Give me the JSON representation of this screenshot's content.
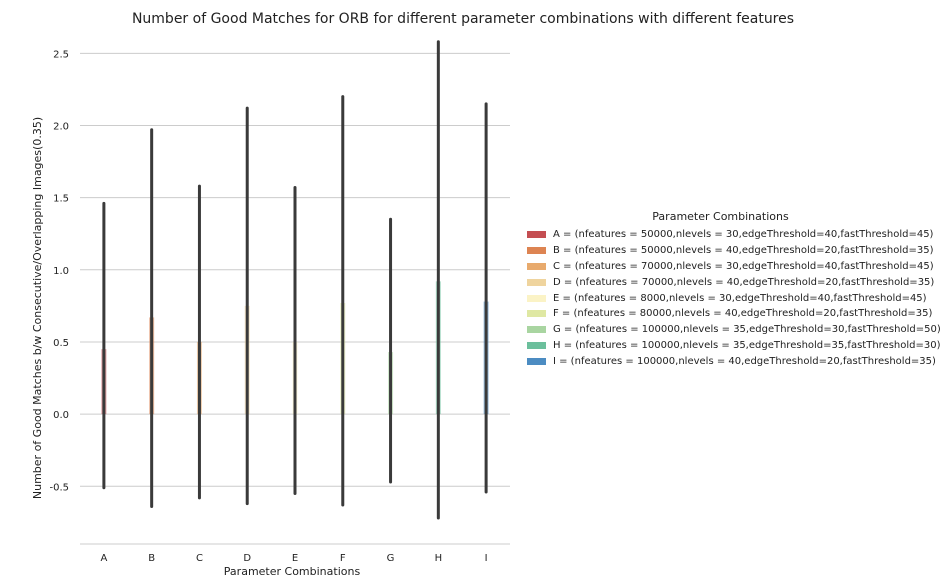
{
  "chart_data": {
    "type": "bar",
    "title": "Number of Good Matches for ORB for different parameter combinations with different features",
    "xlabel": "Parameter Combinations",
    "ylabel": "Number of Good Matches b/w Consecutive/Overlapping Images(0.35)",
    "ylim": [
      -0.9,
      2.62
    ],
    "yticks": [
      -0.5,
      0.0,
      0.5,
      1.0,
      1.5,
      2.0,
      2.5
    ],
    "ytick_labels": [
      "-0.5",
      "0.0",
      "0.5",
      "1.0",
      "1.5",
      "2.0",
      "2.5"
    ],
    "grid": "horizontal",
    "categories": [
      "A",
      "B",
      "C",
      "D",
      "E",
      "F",
      "G",
      "H",
      "I"
    ],
    "values": [
      0.45,
      0.67,
      0.5,
      0.75,
      0.5,
      0.77,
      0.43,
      0.92,
      0.78
    ],
    "error_bars": [
      [
        -0.51,
        1.46
      ],
      [
        -0.64,
        1.97
      ],
      [
        -0.58,
        1.58
      ],
      [
        -0.62,
        2.12
      ],
      [
        -0.55,
        1.57
      ],
      [
        -0.63,
        2.2
      ],
      [
        -0.47,
        1.35
      ],
      [
        -0.72,
        2.58
      ],
      [
        -0.54,
        2.15
      ]
    ],
    "colors": [
      "#c44e52",
      "#dd8452",
      "#e8aa6d",
      "#efd49e",
      "#fbf3c6",
      "#dfe8a3",
      "#a9d5a1",
      "#6bbf9c",
      "#4c8cc2"
    ],
    "legend_title": "Parameter Combinations",
    "legend_position": "center-right",
    "legend": [
      "A = (nfeatures = 50000,nlevels = 30,edgeThreshold=40,fastThreshold=45)",
      "B = (nfeatures = 50000,nlevels = 40,edgeThreshold=20,fastThreshold=35)",
      "C = (nfeatures = 70000,nlevels = 30,edgeThreshold=40,fastThreshold=45)",
      "D = (nfeatures = 70000,nlevels = 40,edgeThreshold=20,fastThreshold=35)",
      "E = (nfeatures = 8000,nlevels = 30,edgeThreshold=40,fastThreshold=45)",
      "F = (nfeatures = 80000,nlevels = 40,edgeThreshold=20,fastThreshold=35)",
      "G = (nfeatures = 100000,nlevels = 35,edgeThreshold=30,fastThreshold=50)",
      "H = (nfeatures = 100000,nlevels = 35,edgeThreshold=35,fastThreshold=30)",
      "I = (nfeatures = 100000,nlevels = 40,edgeThreshold=20,fastThreshold=35)"
    ]
  }
}
